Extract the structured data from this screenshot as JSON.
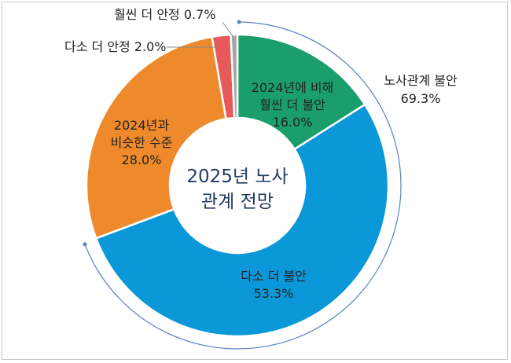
{
  "chart_data": {
    "type": "pie",
    "center_title_lines": [
      "2025년 노사",
      "관계 전망"
    ],
    "slices": [
      {
        "label_lines": [
          "2024년에 비해",
          "훨씬 더 불안"
        ],
        "value": 16.0,
        "value_label": "16.0%",
        "color": "#1a9e6b"
      },
      {
        "label_lines": [
          "다소 더 불안"
        ],
        "value": 53.3,
        "value_label": "53.3%",
        "color": "#0b98d8"
      },
      {
        "label_lines": [
          "2024년과",
          "비슷한 수준"
        ],
        "value": 28.0,
        "value_label": "28.0%",
        "color": "#ee8a2b"
      },
      {
        "label_lines": [
          "다소 더 안정 2.0%"
        ],
        "value": 2.0,
        "value_label": "",
        "color": "#e85a5a"
      },
      {
        "label_lines": [
          "훨씬 더 안정 0.7%"
        ],
        "value": 0.7,
        "value_label": "",
        "color": "#a6a6a6"
      }
    ],
    "bracket_label_lines": [
      "노사관계 불안",
      "69.3%"
    ],
    "bracket_color": "#5a7fc4"
  }
}
